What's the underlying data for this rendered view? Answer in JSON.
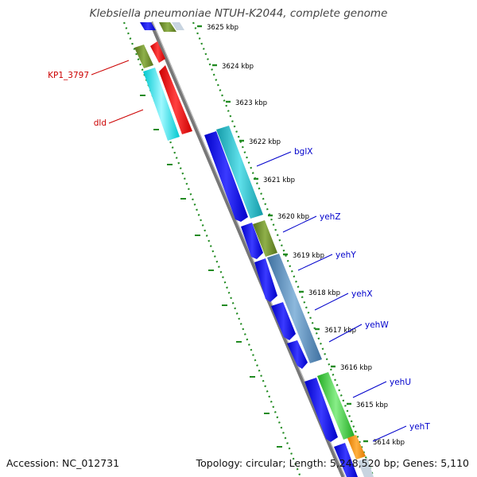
{
  "title": "Klebsiella pneumoniae NTUH-K2044, complete genome",
  "accession": "Accession: NC_012731",
  "topology": "Topology: circular; Length: 5,248,520 bp; Genes: 5,110",
  "colors": {
    "forward_cds": "#0000ee",
    "reverse_cds": "#ee0000",
    "olive": "#6b8e23",
    "cyan": "#00e5ee",
    "teal": "#1fb8c8",
    "steel": "#5b8fbf",
    "green": "#33cc33",
    "orange": "#ff8c00",
    "backbone": "#777777",
    "ticks": "#228b22",
    "label_blue": "#0000cc",
    "label_red": "#cc0000"
  },
  "kbp_labels": [
    "3625 kbp",
    "3624 kbp",
    "3623 kbp",
    "3622 kbp",
    "3621 kbp",
    "3620 kbp",
    "3619 kbp",
    "3618 kbp",
    "3617 kbp",
    "3616 kbp",
    "3615 kbp",
    "3614 kbp"
  ],
  "gene_labels_right": [
    "bglX",
    "yehZ",
    "yehY",
    "yehX",
    "yehW",
    "yehU",
    "yehT"
  ],
  "gene_labels_left": [
    "KP1_3797",
    "dld"
  ]
}
